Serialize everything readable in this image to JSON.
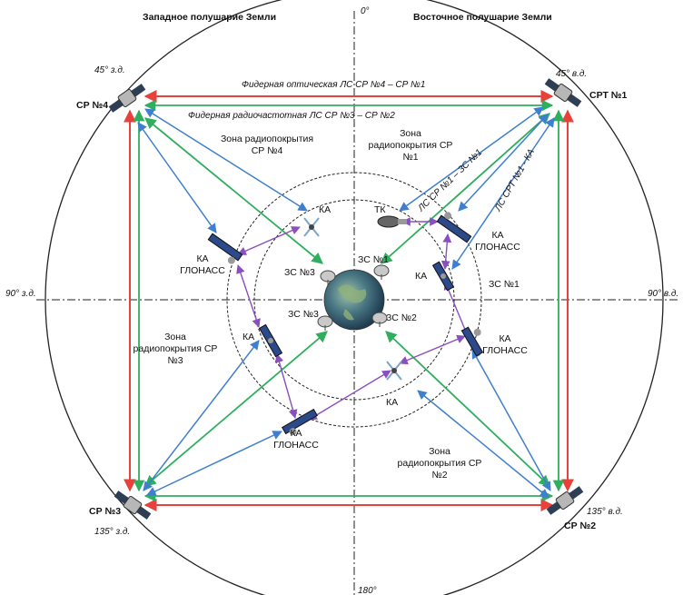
{
  "hemispheres": {
    "west": "Западное полушарие Земли",
    "east": "Восточное полушарие Земли"
  },
  "axes": {
    "top": "0°",
    "bottom": "180°",
    "left": "90° з.д.",
    "right": "90° в.д."
  },
  "relay_satellites": {
    "sr4": {
      "name": "СР №4",
      "longitude": "45° з.д."
    },
    "srt1": {
      "name": "СРТ №1",
      "longitude": "45° в.д."
    },
    "sr3": {
      "name": "СР №3",
      "longitude": "135° з.д."
    },
    "sr2": {
      "name": "СР №2",
      "longitude": "135° в.д."
    }
  },
  "feeder_links": {
    "optical": "Фидерная оптическая ЛС СР №4 – СР №1",
    "radio": "Фидерная радиочастотная ЛС СР №3 – СР №2"
  },
  "coverage_zones": {
    "sr4": [
      "Зона радиопокрытия",
      "СР №4"
    ],
    "sr1": [
      "Зона",
      "радиопокрытия СР",
      "№1"
    ],
    "sr3": [
      "Зона",
      "радиопокрытия СР",
      "№3"
    ],
    "sr2": [
      "Зона",
      "радиопокрытия СР",
      "№2"
    ]
  },
  "links": {
    "sr1_ka": "ЛС СР №1 – ЗС №1",
    "srt1_ka": "ЛС СРТ №1 - КА"
  },
  "spacecraft": {
    "ka": "КА",
    "tk": "ТК",
    "glonass": [
      "КА",
      "ГЛОНАСС"
    ]
  },
  "ground_stations": {
    "zs1": "ЗС №1",
    "zs2": "ЗС №2",
    "zs3": "ЗС №3"
  },
  "colors": {
    "optical_link": "#e8403a",
    "radio_link": "#2fae5e",
    "coverage_link": "#3f7fcf",
    "isl_link": "#8a4fbf"
  }
}
